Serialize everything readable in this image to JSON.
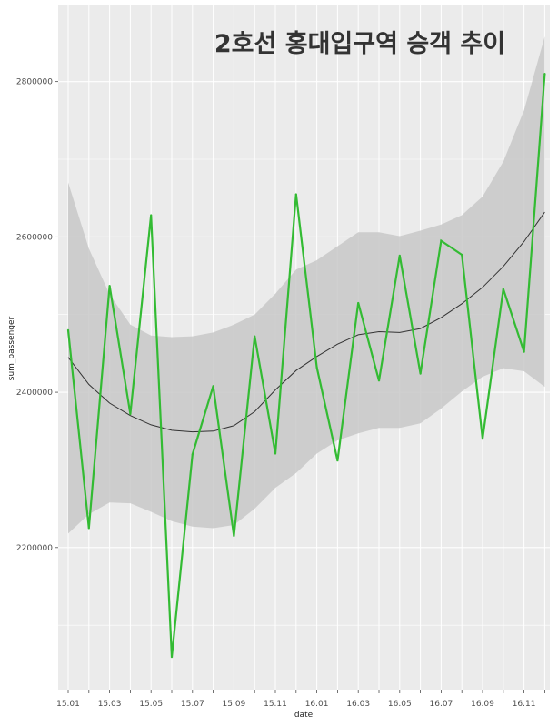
{
  "chart_data": {
    "type": "line",
    "title": "2호선 홍대입구역 승객 추이",
    "xlabel": "date",
    "ylabel": "sum_passenger",
    "x": [
      "15.01",
      "15.02",
      "15.03",
      "15.04",
      "15.05",
      "15.06",
      "15.07",
      "15.08",
      "15.09",
      "15.10",
      "15.11",
      "15.12",
      "16.01",
      "16.02",
      "16.03",
      "16.04",
      "16.05",
      "16.06",
      "16.07",
      "16.08",
      "16.09",
      "16.10",
      "16.11",
      "16.12"
    ],
    "x_tick_labels": [
      "15.01",
      "15.03",
      "15.05",
      "15.07",
      "15.09",
      "15.11",
      "16.01",
      "16.03",
      "16.05",
      "16.07",
      "16.09",
      "16.11"
    ],
    "y_tick_values": [
      2200000,
      2400000,
      2600000,
      2800000
    ],
    "y_tick_labels": [
      "2200000",
      "2400000",
      "2600000",
      "2800000"
    ],
    "ylim": [
      2017000,
      2898000
    ],
    "series": [
      {
        "values": [
          2480000,
          2225000,
          2537000,
          2372000,
          2628000,
          2059000,
          2320000,
          2408000,
          2215000,
          2472000,
          2321000,
          2655000,
          2432000,
          2312000,
          2515000,
          2415000,
          2576000,
          2424000,
          2595000,
          2577000,
          2340000,
          2533000,
          2452000,
          2810000
        ]
      }
    ],
    "smooth": {
      "values": [
        2445000,
        2410000,
        2386000,
        2370000,
        2358000,
        2351000,
        2349000,
        2350000,
        2357000,
        2375000,
        2403000,
        2428000,
        2446000,
        2462000,
        2474000,
        2478000,
        2477000,
        2482000,
        2496000,
        2514000,
        2535000,
        2562000,
        2594000,
        2632000
      ],
      "band_lower": [
        2218000,
        2243000,
        2258000,
        2257000,
        2246000,
        2234000,
        2227000,
        2225000,
        2229000,
        2250000,
        2277000,
        2296000,
        2321000,
        2338000,
        2347000,
        2354000,
        2354000,
        2360000,
        2379000,
        2401000,
        2420000,
        2431000,
        2427000,
        2407000
      ],
      "band_upper": [
        2670000,
        2585000,
        2526000,
        2487000,
        2473000,
        2471000,
        2472000,
        2477000,
        2487000,
        2500000,
        2527000,
        2558000,
        2570000,
        2588000,
        2606000,
        2606000,
        2601000,
        2608000,
        2616000,
        2628000,
        2652000,
        2697000,
        2763000,
        2858000
      ]
    },
    "grid": true,
    "colors": {
      "panel_background": "#ebebeb",
      "grid_major": "#ffffff",
      "line": "#33bb33",
      "smooth": "#333333",
      "band": "#c8c8c8"
    }
  }
}
